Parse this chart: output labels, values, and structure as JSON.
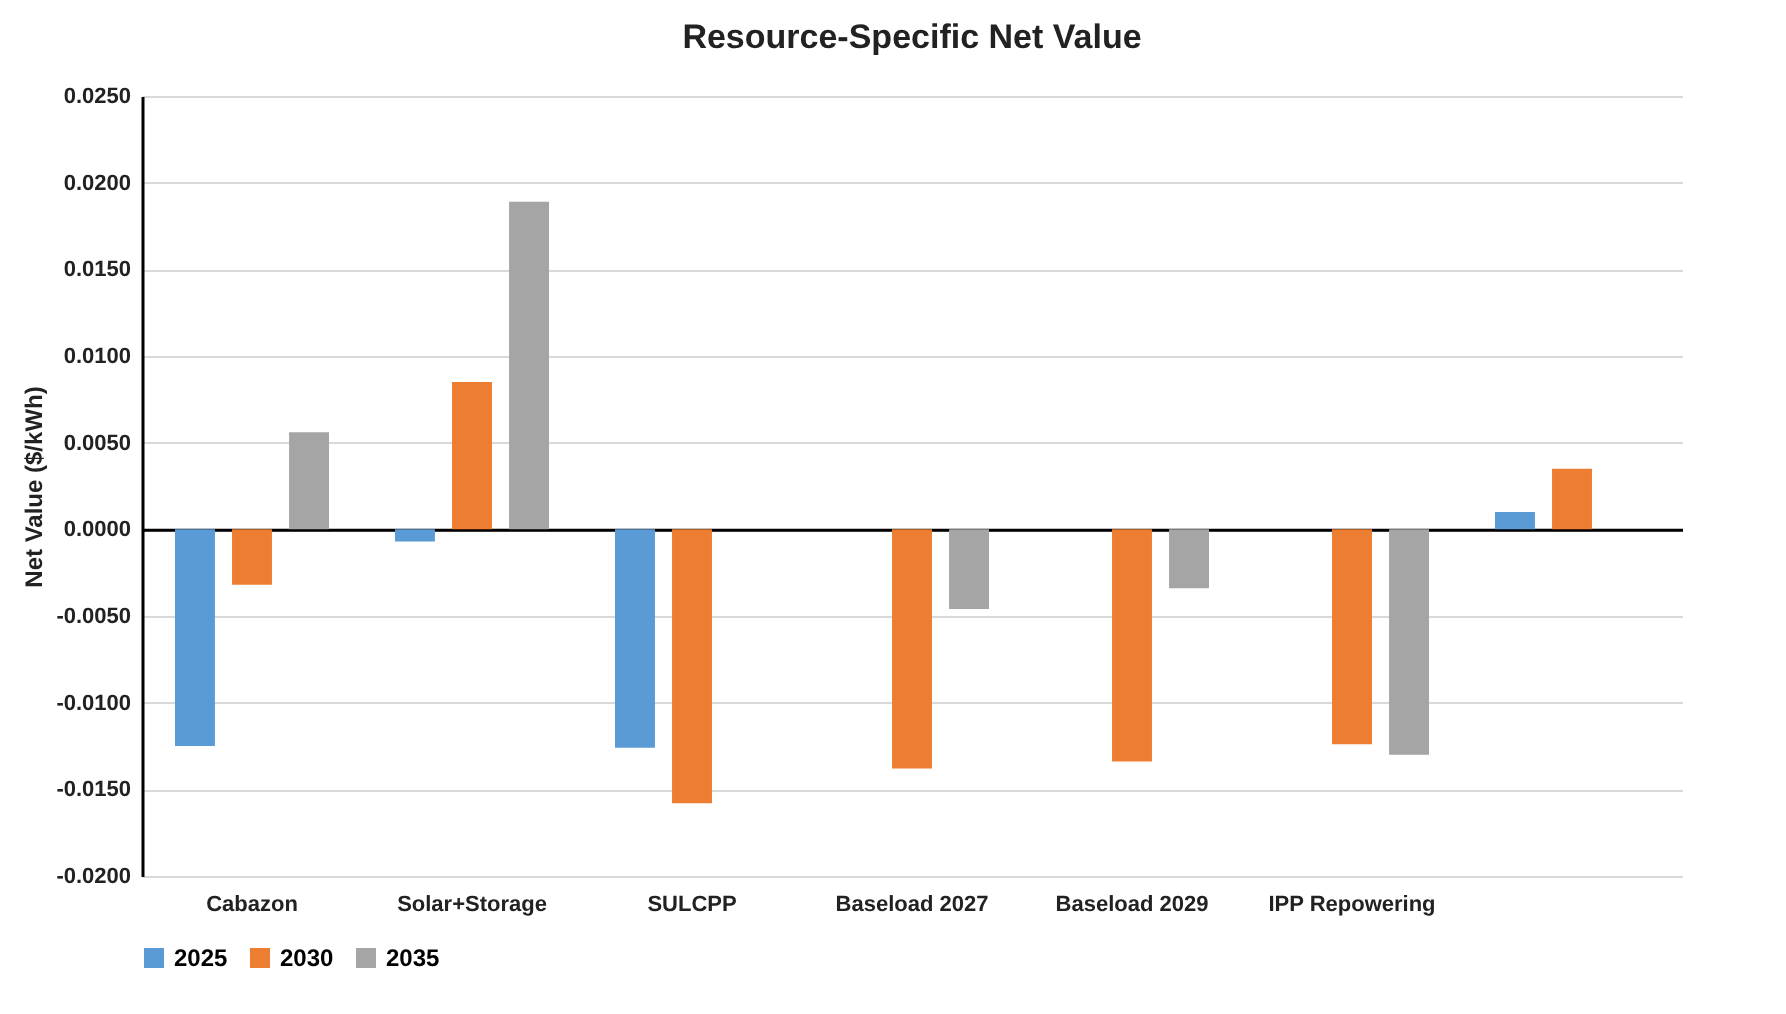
{
  "chart_data": {
    "type": "bar",
    "title": "Resource-Specific Net Value",
    "ylabel": "Net Value ($/kWh)",
    "categories": [
      "Cabazon",
      "Solar+Storage",
      "SULCPP",
      "Baseload 2027",
      "Baseload 2029",
      "IPP Repowering",
      null
    ],
    "series": [
      {
        "name": "2025",
        "color": "#5b9bd5",
        "values": [
          -0.0125,
          -0.0007,
          -0.0126,
          null,
          null,
          null,
          0.001
        ]
      },
      {
        "name": "2030",
        "color": "#ed7d31",
        "values": [
          -0.0032,
          0.0085,
          -0.0158,
          -0.0138,
          -0.0134,
          -0.0124,
          0.0035
        ]
      },
      {
        "name": "2035",
        "color": "#a5a5a5",
        "values": [
          0.0056,
          0.0189,
          null,
          -0.0046,
          -0.0034,
          -0.013,
          null
        ]
      }
    ],
    "ylim": [
      -0.02,
      0.025
    ],
    "yticks": [
      {
        "value": -0.02,
        "label": "-0.0200"
      },
      {
        "value": -0.015,
        "label": "-0.0150"
      },
      {
        "value": -0.01,
        "label": "-0.0100"
      },
      {
        "value": -0.005,
        "label": "-0.0050"
      },
      {
        "value": 0,
        "label": "0.0000"
      },
      {
        "value": 0.005,
        "label": "0.0050"
      },
      {
        "value": 0.01,
        "label": "0.0100"
      },
      {
        "value": 0.015,
        "label": "0.0150"
      },
      {
        "value": 0.02,
        "label": "0.0200"
      },
      {
        "value": 0.025,
        "label": "0.0250"
      }
    ],
    "grid": "y",
    "legend": "bottom"
  }
}
